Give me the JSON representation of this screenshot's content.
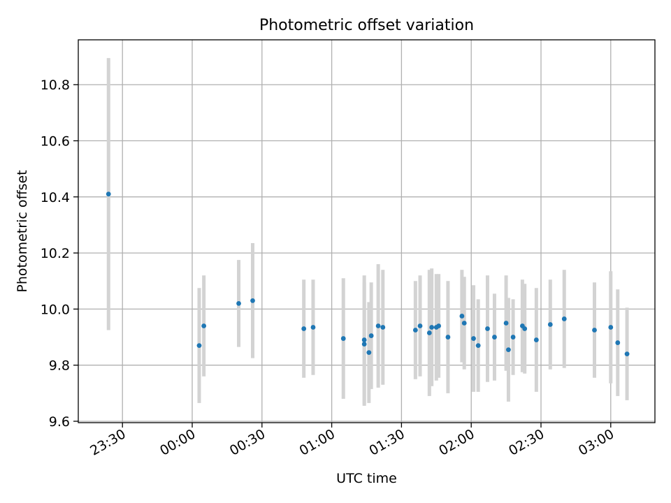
{
  "chart_data": {
    "type": "scatter",
    "title": "Photometric offset variation",
    "xlabel": "UTC time",
    "ylabel": "Photometric offset",
    "x_ticks": [
      "23:30",
      "00:00",
      "00:30",
      "01:00",
      "01:30",
      "02:00",
      "02:30",
      "03:00"
    ],
    "y_ticks": [
      "9.6",
      "9.8",
      "10.0",
      "10.2",
      "10.4",
      "10.6",
      "10.8"
    ],
    "xlim": [
      "23:11",
      "03:19"
    ],
    "ylim": [
      9.595,
      10.96
    ],
    "grid": true,
    "colors": {
      "point": "#1f77b4",
      "errorbar": "#d3d3d3",
      "grid": "#b0b0b0"
    },
    "series": [
      {
        "points": [
          {
            "x": "23:24",
            "y": 10.41,
            "err": 0.485
          },
          {
            "x": "00:03",
            "y": 9.87,
            "err": 0.205
          },
          {
            "x": "00:05",
            "y": 9.94,
            "err": 0.18
          },
          {
            "x": "00:20",
            "y": 10.02,
            "err": 0.155
          },
          {
            "x": "00:26",
            "y": 10.03,
            "err": 0.205
          },
          {
            "x": "00:48",
            "y": 9.93,
            "err": 0.175
          },
          {
            "x": "00:52",
            "y": 9.935,
            "err": 0.17
          },
          {
            "x": "01:05",
            "y": 9.895,
            "err": 0.215
          },
          {
            "x": "01:14",
            "y": 9.89,
            "err": 0.23
          },
          {
            "x": "01:14",
            "y": 9.875,
            "err": 0.22
          },
          {
            "x": "01:16",
            "y": 9.845,
            "err": 0.18
          },
          {
            "x": "01:17",
            "y": 9.905,
            "err": 0.19
          },
          {
            "x": "01:20",
            "y": 9.94,
            "err": 0.22
          },
          {
            "x": "01:22",
            "y": 9.935,
            "err": 0.205
          },
          {
            "x": "01:36",
            "y": 9.925,
            "err": 0.175
          },
          {
            "x": "01:38",
            "y": 9.94,
            "err": 0.18
          },
          {
            "x": "01:42",
            "y": 9.915,
            "err": 0.225
          },
          {
            "x": "01:43",
            "y": 9.935,
            "err": 0.21
          },
          {
            "x": "01:45",
            "y": 9.935,
            "err": 0.19
          },
          {
            "x": "01:46",
            "y": 9.94,
            "err": 0.185
          },
          {
            "x": "01:50",
            "y": 9.9,
            "err": 0.2
          },
          {
            "x": "01:56",
            "y": 9.975,
            "err": 0.165
          },
          {
            "x": "01:57",
            "y": 9.95,
            "err": 0.165
          },
          {
            "x": "02:01",
            "y": 9.895,
            "err": 0.19
          },
          {
            "x": "02:03",
            "y": 9.87,
            "err": 0.165
          },
          {
            "x": "02:07",
            "y": 9.93,
            "err": 0.19
          },
          {
            "x": "02:10",
            "y": 9.9,
            "err": 0.155
          },
          {
            "x": "02:15",
            "y": 9.95,
            "err": 0.17
          },
          {
            "x": "02:16",
            "y": 9.855,
            "err": 0.185
          },
          {
            "x": "02:18",
            "y": 9.9,
            "err": 0.135
          },
          {
            "x": "02:22",
            "y": 9.94,
            "err": 0.165
          },
          {
            "x": "02:23",
            "y": 9.93,
            "err": 0.16
          },
          {
            "x": "02:28",
            "y": 9.89,
            "err": 0.185
          },
          {
            "x": "02:34",
            "y": 9.945,
            "err": 0.16
          },
          {
            "x": "02:40",
            "y": 9.965,
            "err": 0.175
          },
          {
            "x": "02:53",
            "y": 9.925,
            "err": 0.17
          },
          {
            "x": "03:00",
            "y": 9.935,
            "err": 0.2
          },
          {
            "x": "03:03",
            "y": 9.88,
            "err": 0.19
          },
          {
            "x": "03:07",
            "y": 9.84,
            "err": 0.165
          }
        ]
      }
    ]
  }
}
